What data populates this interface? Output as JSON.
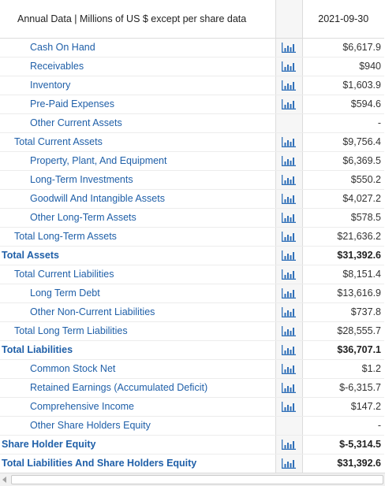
{
  "table": {
    "header_label": "Annual Data | Millions of US $ except per share data",
    "period": "2021-09-30",
    "rows": [
      {
        "label": "Cash On Hand",
        "value": "$6,617.9",
        "chart": true,
        "level": 2,
        "bold": false
      },
      {
        "label": "Receivables",
        "value": "$940",
        "chart": true,
        "level": 2,
        "bold": false
      },
      {
        "label": "Inventory",
        "value": "$1,603.9",
        "chart": true,
        "level": 2,
        "bold": false
      },
      {
        "label": "Pre-Paid Expenses",
        "value": "$594.6",
        "chart": true,
        "level": 2,
        "bold": false
      },
      {
        "label": "Other Current Assets",
        "value": "-",
        "chart": false,
        "level": 2,
        "bold": false
      },
      {
        "label": "Total Current Assets",
        "value": "$9,756.4",
        "chart": true,
        "level": 1,
        "bold": false
      },
      {
        "label": "Property, Plant, And Equipment",
        "value": "$6,369.5",
        "chart": true,
        "level": 2,
        "bold": false
      },
      {
        "label": "Long-Term Investments",
        "value": "$550.2",
        "chart": true,
        "level": 2,
        "bold": false
      },
      {
        "label": "Goodwill And Intangible Assets",
        "value": "$4,027.2",
        "chart": true,
        "level": 2,
        "bold": false
      },
      {
        "label": "Other Long-Term Assets",
        "value": "$578.5",
        "chart": true,
        "level": 2,
        "bold": false
      },
      {
        "label": "Total Long-Term Assets",
        "value": "$21,636.2",
        "chart": true,
        "level": 1,
        "bold": false
      },
      {
        "label": "Total Assets",
        "value": "$31,392.6",
        "chart": true,
        "level": 0,
        "bold": true
      },
      {
        "label": "Total Current Liabilities",
        "value": "$8,151.4",
        "chart": true,
        "level": 1,
        "bold": false
      },
      {
        "label": "Long Term Debt",
        "value": "$13,616.9",
        "chart": true,
        "level": 2,
        "bold": false
      },
      {
        "label": "Other Non-Current Liabilities",
        "value": "$737.8",
        "chart": true,
        "level": 2,
        "bold": false
      },
      {
        "label": "Total Long Term Liabilities",
        "value": "$28,555.7",
        "chart": true,
        "level": 1,
        "bold": false
      },
      {
        "label": "Total Liabilities",
        "value": "$36,707.1",
        "chart": true,
        "level": 0,
        "bold": true
      },
      {
        "label": "Common Stock Net",
        "value": "$1.2",
        "chart": true,
        "level": 2,
        "bold": false
      },
      {
        "label": "Retained Earnings (Accumulated Deficit)",
        "value": "$-6,315.7",
        "chart": true,
        "level": 2,
        "bold": false
      },
      {
        "label": "Comprehensive Income",
        "value": "$147.2",
        "chart": true,
        "level": 2,
        "bold": false
      },
      {
        "label": "Other Share Holders Equity",
        "value": "-",
        "chart": false,
        "level": 2,
        "bold": false
      },
      {
        "label": "Share Holder Equity",
        "value": "$-5,314.5",
        "chart": true,
        "level": 0,
        "bold": true
      },
      {
        "label": "Total Liabilities And Share Holders Equity",
        "value": "$31,392.6",
        "chart": true,
        "level": 0,
        "bold": true
      }
    ]
  },
  "icons": {
    "chart": "bar-chart-icon",
    "scroll_left": "scroll-left-arrow-icon"
  },
  "colors": {
    "label_text": "#1f5fa8",
    "icon_blue": "#2f6fb8",
    "icon_bg": "#f6f6f6",
    "border": "#dcdcdc"
  }
}
